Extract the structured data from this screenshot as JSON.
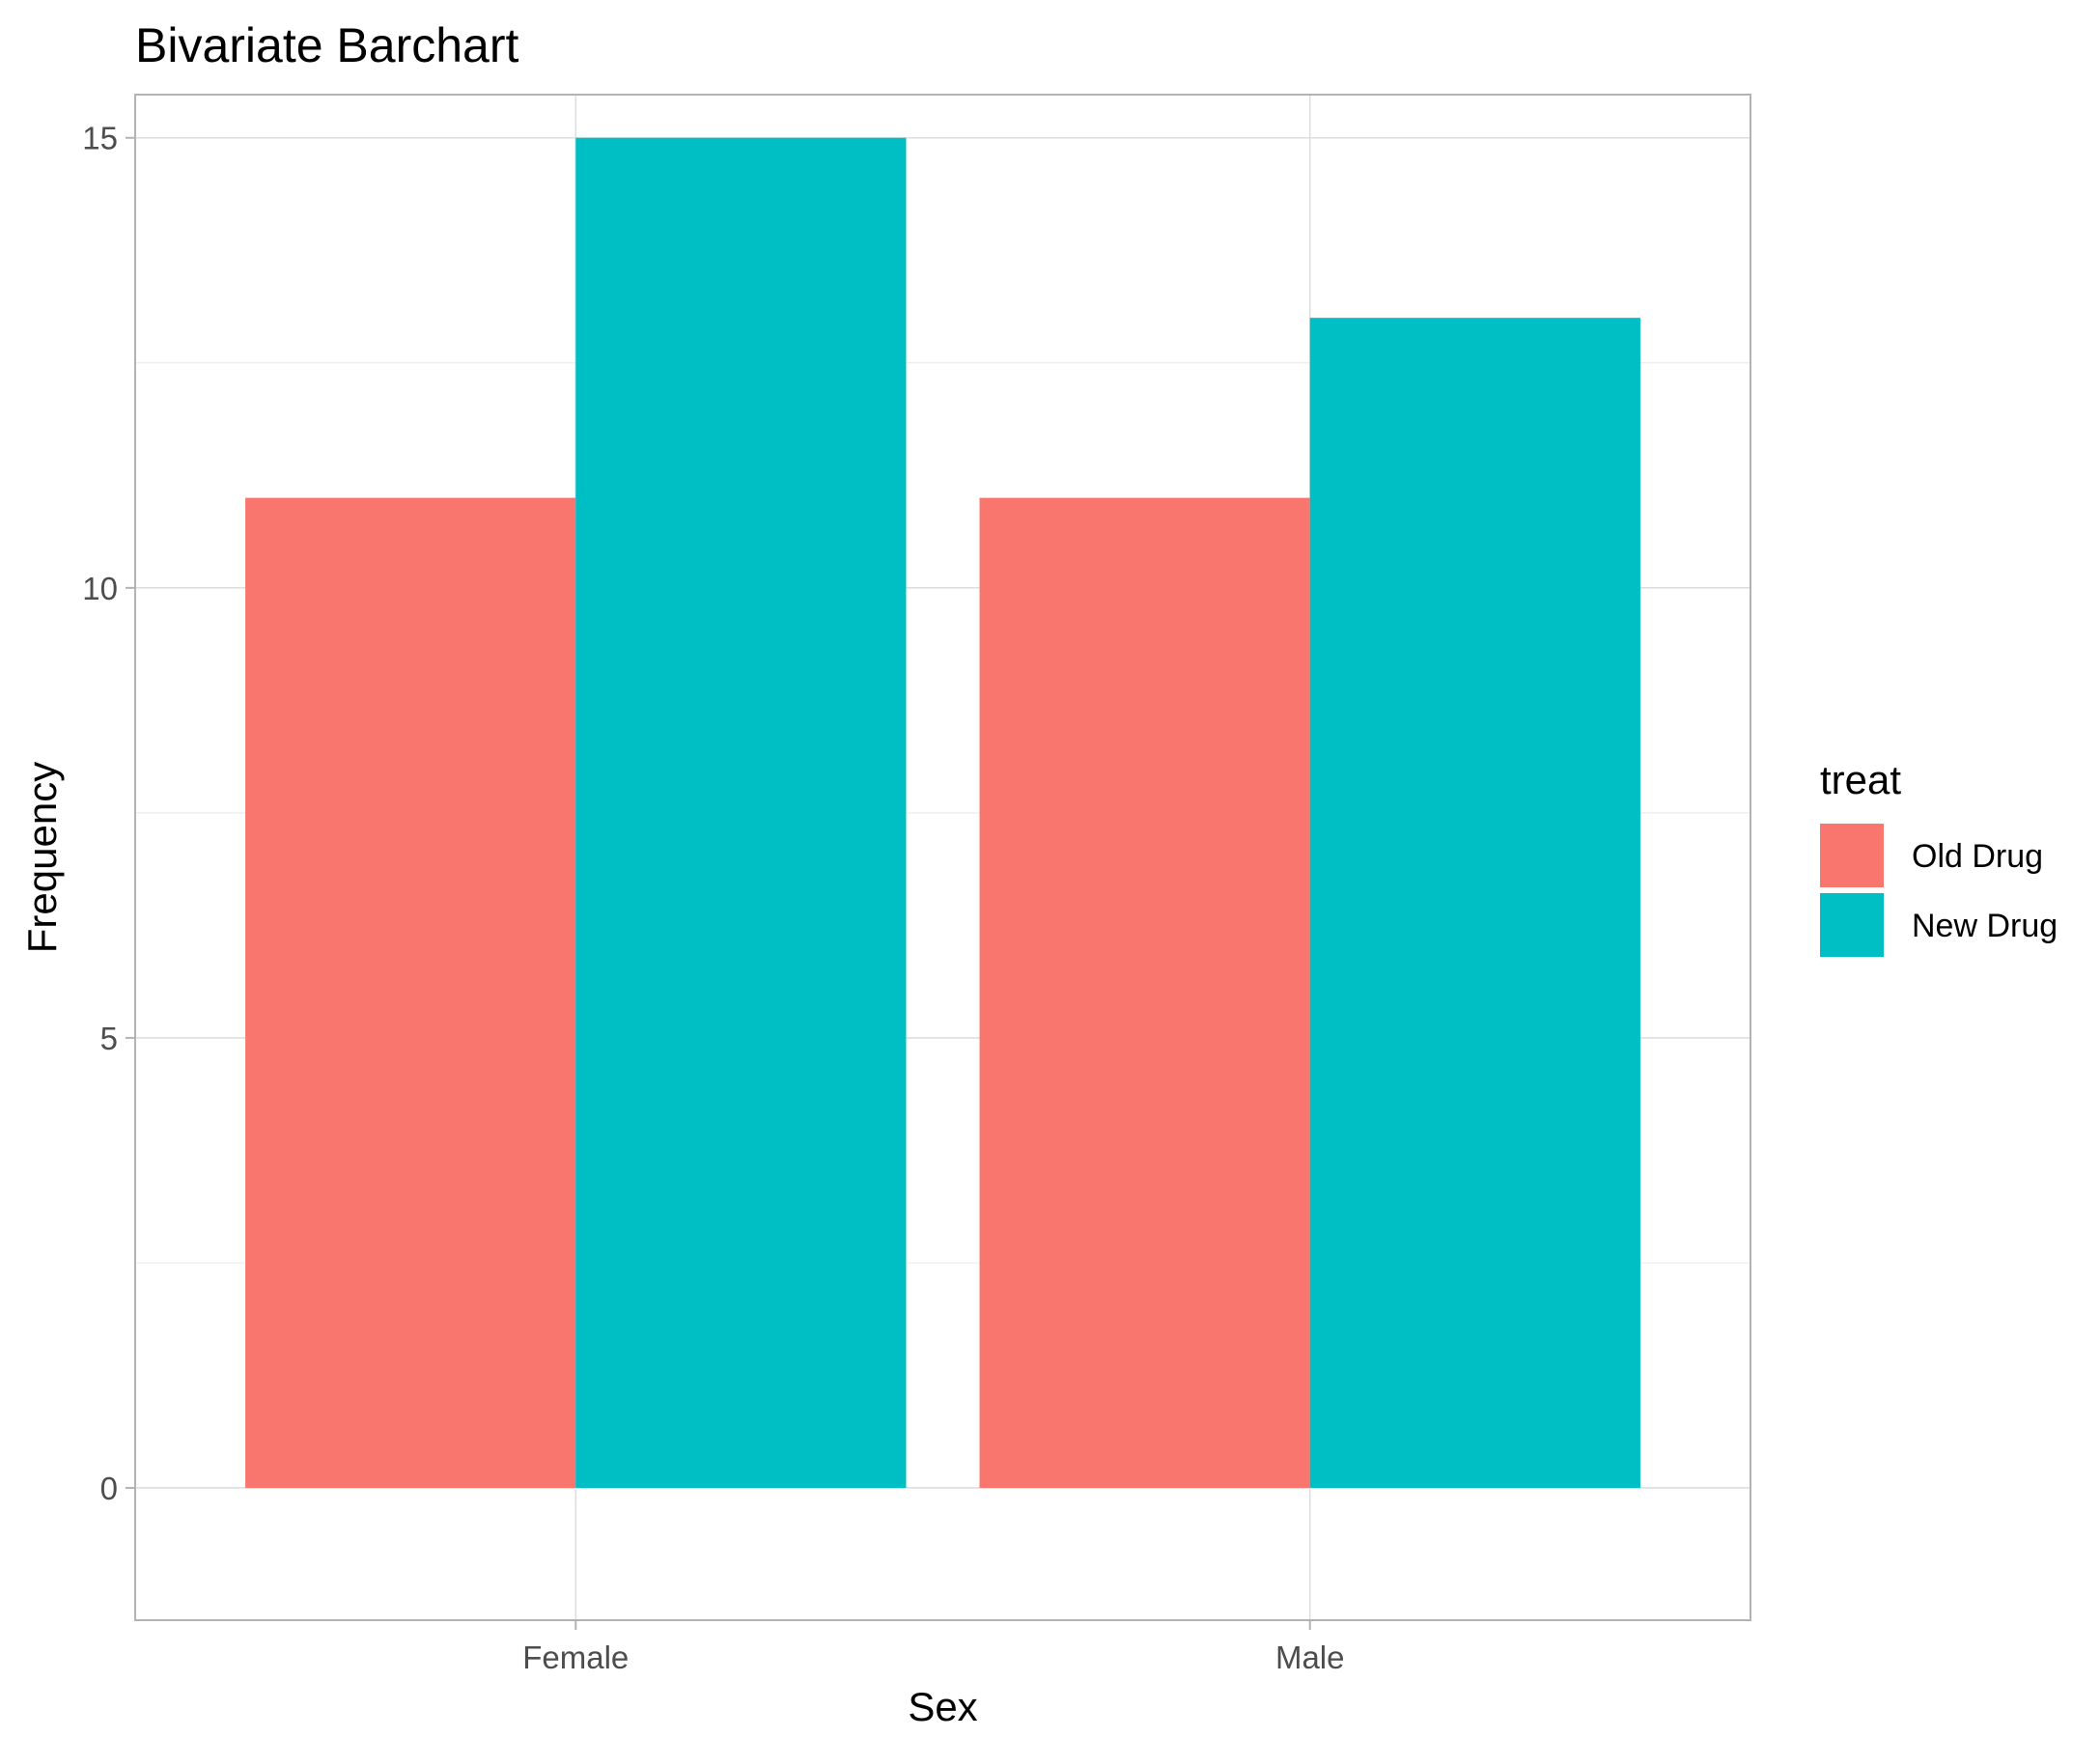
{
  "chart_data": {
    "type": "bar",
    "title": "Bivariate Barchart",
    "xlabel": "Sex",
    "ylabel": "Frequency",
    "categories": [
      "Female",
      "Male"
    ],
    "series": [
      {
        "name": "Old Drug",
        "values": [
          11,
          11
        ],
        "color": "#F8766D"
      },
      {
        "name": "New Drug",
        "values": [
          15,
          13
        ],
        "color": "#00BFC4"
      }
    ],
    "ylim": [
      -1.47,
      15.48
    ],
    "yticks": [
      0,
      5,
      10,
      15
    ],
    "ytick_labels": [
      "0",
      "5",
      "10",
      "15"
    ],
    "grid": true,
    "legend": {
      "title": "treat",
      "position": "right"
    },
    "background": "#FFFFFF"
  }
}
